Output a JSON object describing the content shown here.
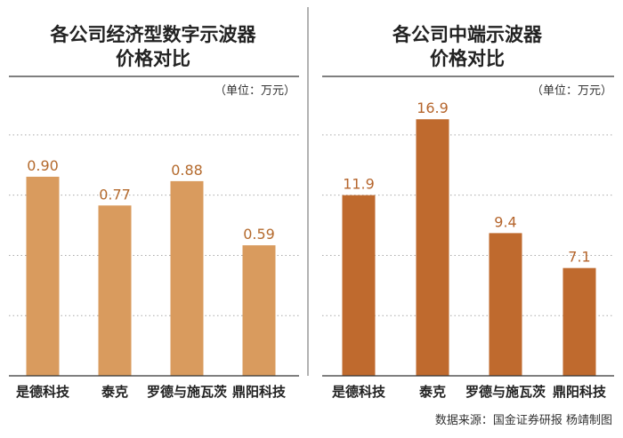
{
  "colors": {
    "left_bar": "#D99B5E",
    "right_bar": "#BF6A2E",
    "left_label": "#B46A2D",
    "right_label": "#B5652C",
    "grid": "#AAAAAA",
    "text": "#222222"
  },
  "source": "数据来源：国金证券研报  杨靖制图",
  "chart_data": [
    {
      "type": "bar",
      "title_line1": "各公司经济型数字示波器",
      "title_line2": "价格对比",
      "unit": "（单位：万元）",
      "categories": [
        "是德科技",
        "泰克",
        "罗德与施瓦茨",
        "鼎阳科技"
      ],
      "values": [
        0.9,
        0.77,
        0.88,
        0.59
      ],
      "value_labels": [
        "0.90",
        "0.77",
        "0.88",
        "0.59"
      ],
      "ylim": [
        0,
        1.225
      ]
    },
    {
      "type": "bar",
      "title_line1": "各公司中端示波器",
      "title_line2": "价格对比",
      "unit": "（单位：万元）",
      "categories": [
        "是德科技",
        "泰克",
        "罗德与施瓦茨",
        "鼎阳科技"
      ],
      "values": [
        11.9,
        16.9,
        9.4,
        7.1
      ],
      "value_labels": [
        "11.9",
        "16.9",
        "9.4",
        "7.1"
      ],
      "ylim": [
        0,
        17.85
      ]
    }
  ]
}
